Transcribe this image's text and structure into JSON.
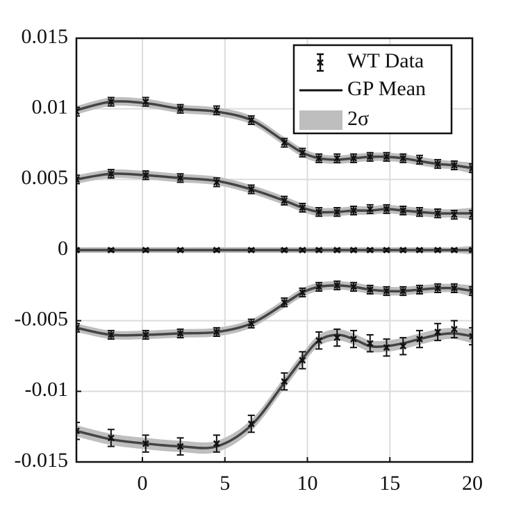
{
  "chart_data": {
    "type": "errorbar_gp",
    "xlim": [
      -4,
      20
    ],
    "ylim": [
      -0.015,
      0.015
    ],
    "xticks": [
      0,
      5,
      10,
      15,
      20
    ],
    "yticks": [
      -0.015,
      -0.01,
      -0.005,
      0,
      0.005,
      0.01,
      0.015
    ],
    "grid": true,
    "legend": "upper right",
    "x": [
      -4,
      -1.9,
      0.2,
      2.3,
      4.5,
      6.6,
      8.6,
      9.7,
      10.7,
      11.8,
      12.8,
      13.8,
      14.8,
      15.8,
      16.8,
      17.9,
      18.9,
      20
    ],
    "series": [
      {
        "name": "WT Data",
        "color": "#111111",
        "values": [
          [
            0.0098,
            0.0105,
            0.0105,
            0.01,
            0.0099,
            0.0092,
            0.0076,
            0.0069,
            0.0065,
            0.0065,
            0.0065,
            0.0066,
            0.0066,
            0.0065,
            0.0064,
            0.0061,
            0.006,
            0.0058
          ],
          [
            0.005,
            0.0054,
            0.0053,
            0.0051,
            0.0048,
            0.0043,
            0.0035,
            0.003,
            0.0027,
            0.0027,
            0.0028,
            0.0029,
            0.0029,
            0.0028,
            0.0027,
            0.0026,
            0.0025,
            0.0025
          ],
          [
            0,
            0,
            0,
            0,
            0,
            0,
            0,
            0,
            0,
            0,
            0,
            0,
            0,
            0,
            0,
            0,
            0,
            0
          ],
          [
            -0.0055,
            -0.006,
            -0.006,
            -0.0059,
            -0.0058,
            -0.0052,
            -0.0037,
            -0.003,
            -0.0026,
            -0.0025,
            -0.0026,
            -0.0028,
            -0.0029,
            -0.0029,
            -0.0028,
            -0.0027,
            -0.0027,
            -0.0029
          ],
          [
            -0.0128,
            -0.0133,
            -0.0137,
            -0.0139,
            -0.0137,
            -0.0123,
            -0.0093,
            -0.0078,
            -0.0064,
            -0.0062,
            -0.0063,
            -0.0066,
            -0.0069,
            -0.0068,
            -0.0063,
            -0.0058,
            -0.0056,
            -0.0061
          ]
        ],
        "errors": [
          [
            0.0003,
            0.0003,
            0.0003,
            0.0003,
            0.0003,
            0.0003,
            0.0003,
            0.0003,
            0.0003,
            0.0003,
            0.0003,
            0.0003,
            0.0003,
            0.0003,
            0.0003,
            0.0003,
            0.0003,
            0.0003
          ],
          [
            0.0003,
            0.0003,
            0.0003,
            0.0003,
            0.0003,
            0.0003,
            0.0003,
            0.0003,
            0.0003,
            0.0003,
            0.0003,
            0.0003,
            0.0003,
            0.0003,
            0.0003,
            0.0003,
            0.0003,
            0.0003
          ],
          [
            0.0001,
            0.0001,
            0.0001,
            0.0001,
            0.0001,
            0.0001,
            0.0001,
            0.0001,
            0.0001,
            0.0001,
            0.0001,
            0.0001,
            0.0001,
            0.0001,
            0.0001,
            0.0001,
            0.0001,
            0.0001
          ],
          [
            0.0003,
            0.0003,
            0.0003,
            0.0003,
            0.0003,
            0.0003,
            0.0003,
            0.0003,
            0.0003,
            0.0003,
            0.0003,
            0.0003,
            0.0003,
            0.0003,
            0.0003,
            0.0003,
            0.0003,
            0.0003
          ],
          [
            0.0006,
            0.0006,
            0.0006,
            0.0006,
            0.0006,
            0.0006,
            0.0006,
            0.0006,
            0.0006,
            0.0006,
            0.0006,
            0.0006,
            0.0006,
            0.0006,
            0.0006,
            0.0006,
            0.0006,
            0.0006
          ]
        ]
      },
      {
        "name": "GP Mean",
        "color": "#444444",
        "values": [
          [
            0.0099,
            0.0105,
            0.0104,
            0.01,
            0.0098,
            0.0092,
            0.0077,
            0.0069,
            0.0065,
            0.0064,
            0.0065,
            0.0066,
            0.0066,
            0.0065,
            0.0063,
            0.0061,
            0.006,
            0.0058
          ],
          [
            0.005,
            0.0054,
            0.0053,
            0.0051,
            0.0049,
            0.0043,
            0.0035,
            0.003,
            0.0027,
            0.0027,
            0.0028,
            0.0028,
            0.0029,
            0.0028,
            0.0027,
            0.0026,
            0.0026,
            0.0026
          ],
          [
            0,
            0,
            0,
            0,
            0,
            0,
            0,
            0,
            0,
            0,
            0,
            0,
            0,
            0,
            0,
            0,
            0,
            0
          ],
          [
            -0.0055,
            -0.006,
            -0.006,
            -0.0059,
            -0.0058,
            -0.0052,
            -0.0038,
            -0.003,
            -0.0026,
            -0.0025,
            -0.0026,
            -0.0028,
            -0.0029,
            -0.0029,
            -0.0028,
            -0.0027,
            -0.0027,
            -0.0029
          ],
          [
            -0.0128,
            -0.0134,
            -0.0137,
            -0.0139,
            -0.0139,
            -0.0124,
            -0.0094,
            -0.0077,
            -0.0064,
            -0.006,
            -0.0063,
            -0.0068,
            -0.0068,
            -0.0066,
            -0.0063,
            -0.006,
            -0.0059,
            -0.0061
          ]
        ]
      },
      {
        "name": "2σ",
        "color": "#bebebe",
        "values": [
          [
            0.0003,
            0.0003,
            0.0003,
            0.0003,
            0.0003,
            0.0003,
            0.0003,
            0.0003,
            0.0003,
            0.0003,
            0.0003,
            0.0003,
            0.0003,
            0.0003,
            0.0003,
            0.0003,
            0.0003,
            0.0004
          ],
          [
            0.0003,
            0.0003,
            0.0003,
            0.0003,
            0.0003,
            0.0003,
            0.0003,
            0.0003,
            0.0003,
            0.0003,
            0.0003,
            0.0003,
            0.0003,
            0.0003,
            0.0003,
            0.0003,
            0.0003,
            0.0004
          ],
          [
            0.0002,
            0.0002,
            0.0002,
            0.0002,
            0.0002,
            0.0002,
            0.0002,
            0.0002,
            0.0002,
            0.0002,
            0.0002,
            0.0002,
            0.0002,
            0.0002,
            0.0002,
            0.0002,
            0.0002,
            0.0003
          ],
          [
            0.0003,
            0.0003,
            0.0003,
            0.0003,
            0.0003,
            0.0003,
            0.0003,
            0.0003,
            0.0003,
            0.0003,
            0.0003,
            0.0003,
            0.0003,
            0.0003,
            0.0003,
            0.0003,
            0.0003,
            0.0004
          ],
          [
            0.0004,
            0.0004,
            0.0004,
            0.0004,
            0.0004,
            0.0004,
            0.0004,
            0.0004,
            0.0004,
            0.0004,
            0.0004,
            0.0004,
            0.0004,
            0.0004,
            0.0004,
            0.0004,
            0.0004,
            0.0005
          ]
        ]
      }
    ]
  }
}
